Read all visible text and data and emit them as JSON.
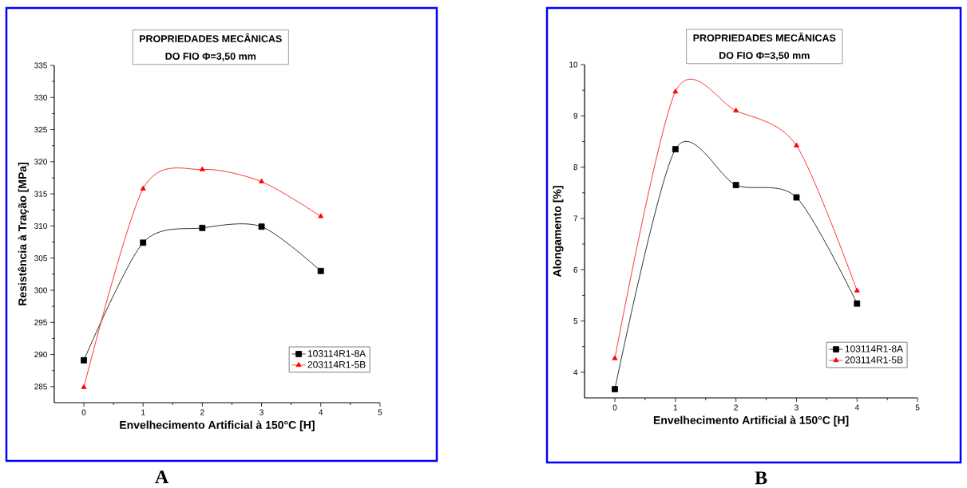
{
  "chart_data": [
    {
      "type": "line",
      "title": "PROPRIEDADES MECÂNICAS",
      "subtitle": "DO FIO Φ=3,50 mm",
      "xlabel": "Envelhecimento Artificial à 150°C [H]",
      "ylabel": "Resistência à Tração [MPa]",
      "x": [
        0,
        1,
        2,
        3,
        4
      ],
      "xlim": [
        -0.5,
        5
      ],
      "xticks": [
        0,
        1,
        2,
        3,
        4,
        5
      ],
      "ylim": [
        282.5,
        335
      ],
      "yticks": [
        285,
        290,
        295,
        300,
        305,
        310,
        315,
        320,
        325,
        330,
        335
      ],
      "legend": "bottom right",
      "line_style": "solid",
      "annotations": [
        "A"
      ],
      "series": [
        {
          "name": "103114R1-8A",
          "color": "#000000",
          "marker": "square",
          "values": [
            289.1,
            307.4,
            309.7,
            309.9,
            303.0
          ]
        },
        {
          "name": "203114R1-5B",
          "color": "#ff0000",
          "marker": "triangle",
          "values": [
            284.9,
            315.8,
            318.8,
            316.9,
            311.5
          ]
        }
      ]
    },
    {
      "type": "line",
      "title": "PROPRIEDADES MECÂNICAS",
      "subtitle": "DO FIO Φ=3,50 mm",
      "xlabel": "Envelhecimento Artificial à 150°C [H]",
      "ylabel": "Alongamento [%]",
      "x": [
        0,
        1,
        2,
        3,
        4
      ],
      "xlim": [
        -0.5,
        5
      ],
      "xticks": [
        0,
        1,
        2,
        3,
        4,
        5
      ],
      "ylim": [
        3.5,
        10
      ],
      "yticks": [
        4,
        5,
        6,
        7,
        8,
        9,
        10
      ],
      "legend": "bottom right",
      "line_style": "solid",
      "annotations": [
        "B"
      ],
      "series": [
        {
          "name": "103114R1-8A",
          "color": "#000000",
          "marker": "square",
          "values": [
            3.67,
            8.35,
            7.65,
            7.41,
            5.34
          ]
        },
        {
          "name": "203114R1-5B",
          "color": "#ff0000",
          "marker": "triangle",
          "values": [
            4.27,
            9.47,
            9.1,
            8.42,
            5.59
          ]
        }
      ]
    }
  ]
}
